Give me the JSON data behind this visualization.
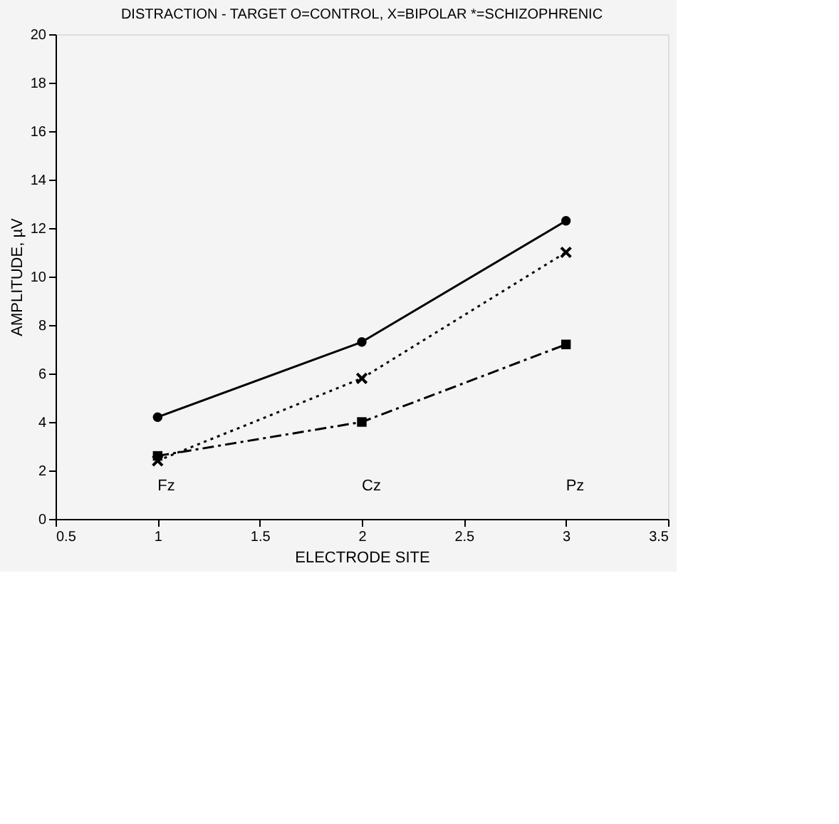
{
  "chart_data": {
    "type": "line",
    "title": "DISTRACTION - TARGET O=CONTROL, X=BIPOLAR *=SCHIZOPHRENIC",
    "xlabel": "ELECTRODE SITE",
    "ylabel": "AMPLITUDE, µV",
    "x": [
      1,
      2,
      3
    ],
    "series": [
      {
        "color": "#000000",
        "values": [
          4.2,
          7.3,
          12.3
        ],
        "marker": "circle",
        "line_style": "solid"
      },
      {
        "color": "#000000",
        "values": [
          2.4,
          5.8,
          11.0
        ],
        "marker": "cross",
        "line_style": "dotted"
      },
      {
        "color": "#000000",
        "values": [
          2.6,
          4.0,
          7.2
        ],
        "marker": "square",
        "line_style": "dashed"
      }
    ],
    "xlim": [
      0.5,
      3.5
    ],
    "xticks": [
      0.5,
      1,
      1.5,
      2,
      2.5,
      3,
      3.5
    ],
    "ylim": [
      0,
      20
    ],
    "yticks": [
      0,
      2,
      4,
      6,
      8,
      10,
      12,
      14,
      16,
      18,
      20
    ],
    "grid": false,
    "annotations": [
      "Fz",
      "Cz",
      "Pz"
    ]
  }
}
